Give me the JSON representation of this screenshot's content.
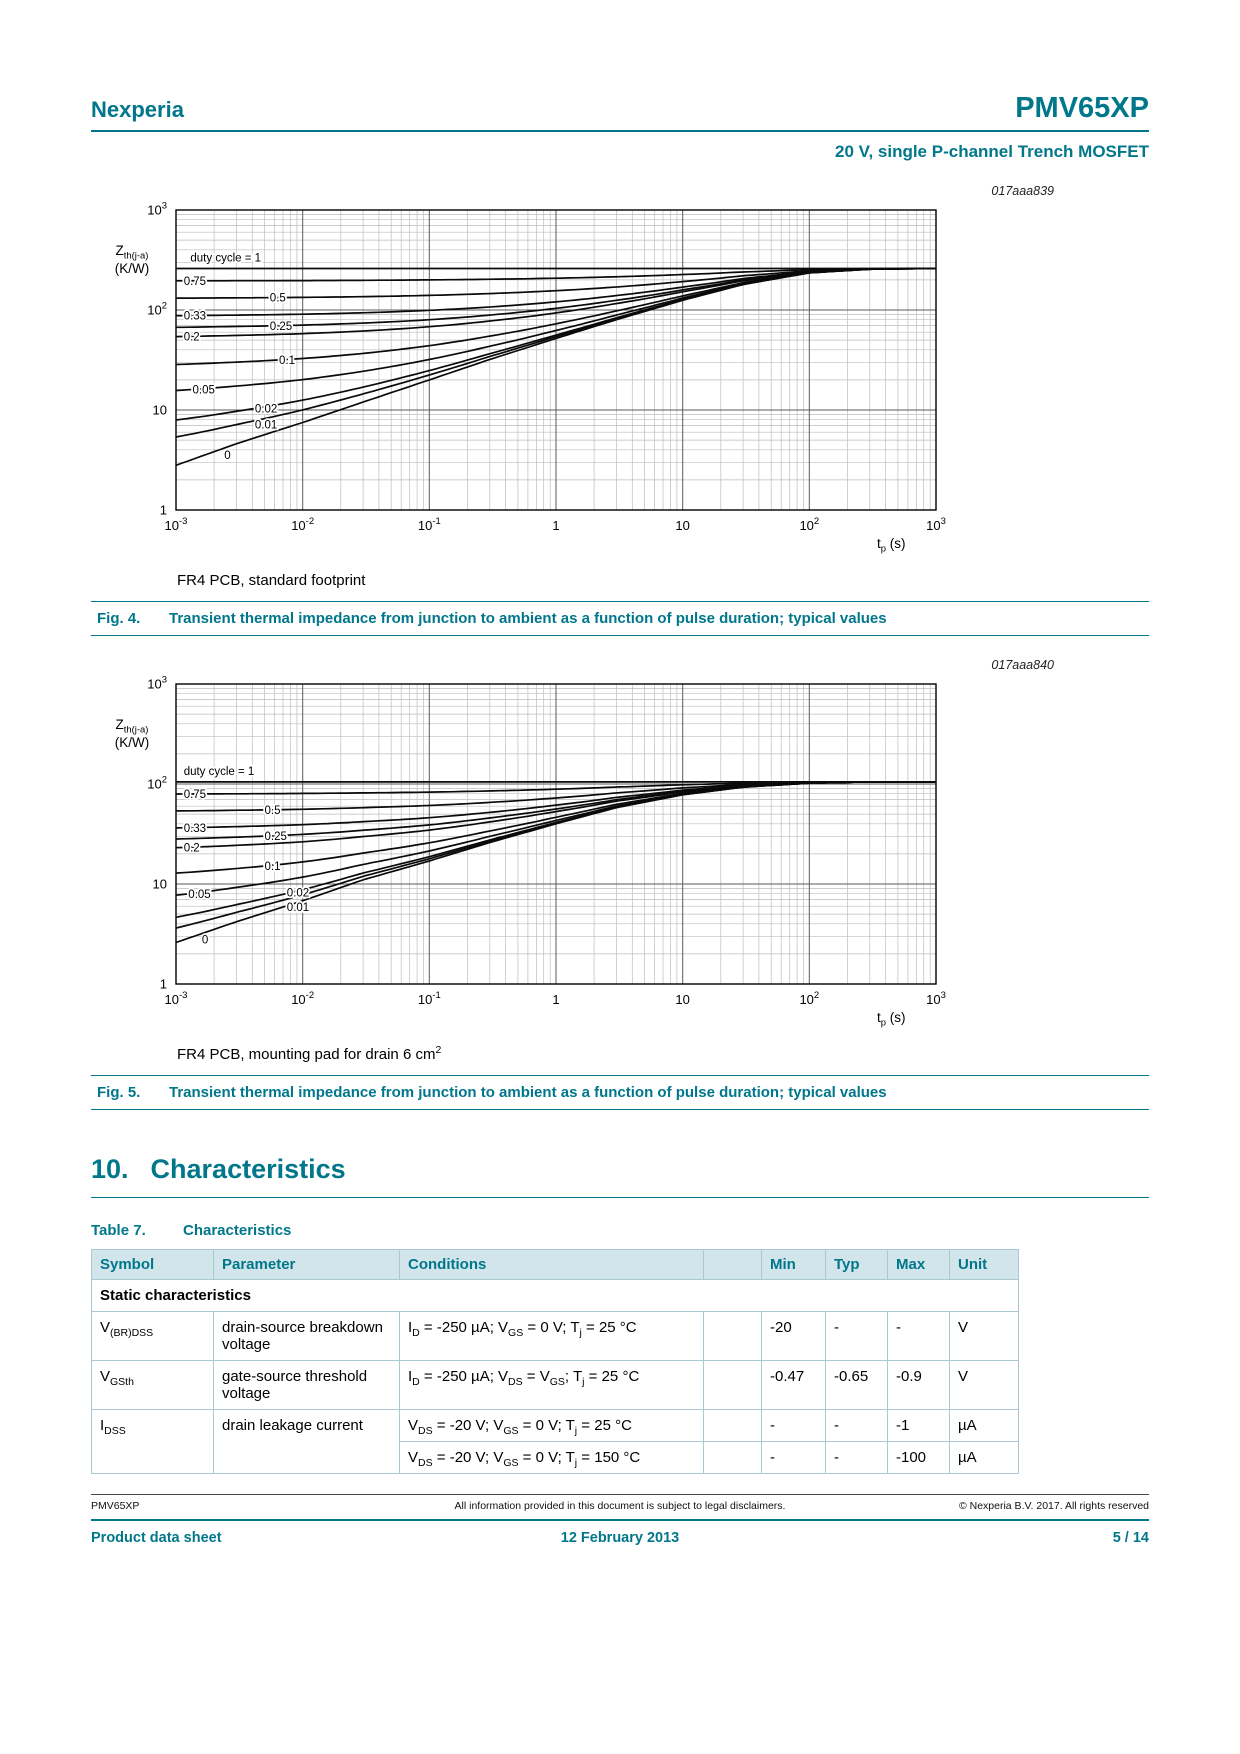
{
  "page": {
    "brand": "Nexperia",
    "part": "PMV65XP",
    "subtitle": "20 V, single P-channel Trench MOSFET",
    "accent_color": "#00778a"
  },
  "figures": [
    {
      "plot_id": "017aaa839",
      "ylabel_line1": [
        {
          "t": "Z"
        },
        {
          "s": "th(j-a)"
        }
      ],
      "ylabel_line2": "(K/W)",
      "xlabel": [
        {
          "t": "t"
        },
        {
          "s": "p"
        },
        {
          "t": " (s)"
        }
      ],
      "note": [
        {
          "t": "FR4 PCB, standard footprint"
        }
      ],
      "caption_label": "Fig. 4.",
      "caption": "Transient thermal impedance from junction to ambient as a function of pulse duration; typical values"
    },
    {
      "plot_id": "017aaa840",
      "ylabel_line1": [
        {
          "t": "Z"
        },
        {
          "s": "th(j-a)"
        }
      ],
      "ylabel_line2": "(K/W)",
      "xlabel": [
        {
          "t": "t"
        },
        {
          "s": "p"
        },
        {
          "t": " (s)"
        }
      ],
      "note": [
        {
          "t": "FR4 PCB, mounting pad for drain 6 cm"
        },
        {
          "p": "2"
        }
      ],
      "caption_label": "Fig. 5.",
      "caption": "Transient thermal impedance from junction to ambient as a function of pulse duration; typical values"
    }
  ],
  "chart_data": [
    {
      "type": "line",
      "plot_id": "017aaa839",
      "xlabel": "tp (s)",
      "ylabel": "Zth(j-a) (K/W)",
      "xscale": "log",
      "yscale": "log",
      "xlim": [
        0.001,
        1000
      ],
      "ylim": [
        1,
        1000
      ],
      "x_decades": [
        -3,
        -2,
        -1,
        0,
        1,
        2,
        3
      ],
      "y_decades": [
        0,
        1,
        2,
        3
      ],
      "grid": {
        "major": true,
        "minor": true
      },
      "rth_kw": 260,
      "duty_cycles": [
        1,
        0.75,
        0.5,
        0.33,
        0.25,
        0.2,
        0.1,
        0.05,
        0.02,
        0.01,
        0
      ],
      "model": "Zth(d,t) = d*Rth + (1-d)*Zth_single_shot(t)",
      "single_shot": {
        "t": [
          0.001,
          0.003,
          0.01,
          0.03,
          0.1,
          0.3,
          1,
          3,
          10,
          30,
          100,
          300,
          1000
        ],
        "zth": [
          2.8,
          4.6,
          7.5,
          12,
          20,
          32,
          52,
          80,
          125,
          180,
          235,
          256,
          260
        ]
      },
      "labels": [
        {
          "text": "duty cycle = 1",
          "d": 1,
          "t": 0.0013,
          "dy": -7
        },
        {
          "text": "0.75",
          "d": 0.75,
          "t": 0.00115,
          "dy": 4
        },
        {
          "text": "0.5",
          "d": 0.5,
          "t": 0.0055,
          "dy": 4
        },
        {
          "text": "0.33",
          "d": 0.33,
          "t": 0.00115,
          "dy": 4
        },
        {
          "text": "0.25",
          "d": 0.25,
          "t": 0.0055,
          "dy": 4
        },
        {
          "text": "0.2",
          "d": 0.2,
          "t": 0.00115,
          "dy": 4
        },
        {
          "text": "0.1",
          "d": 0.1,
          "t": 0.0065,
          "dy": 4
        },
        {
          "text": "0.05",
          "d": 0.05,
          "t": 0.00135,
          "dy": 4
        },
        {
          "text": "0.02",
          "d": 0.02,
          "t": 0.0042,
          "dy": 4
        },
        {
          "text": "0.01",
          "d": 0.01,
          "t": 0.0042,
          "dy": 8
        },
        {
          "text": "0",
          "d": 0,
          "t": 0.0024,
          "dy": 11
        }
      ]
    },
    {
      "type": "line",
      "plot_id": "017aaa840",
      "xlabel": "tp (s)",
      "ylabel": "Zth(j-a) (K/W)",
      "xscale": "log",
      "yscale": "log",
      "xlim": [
        0.001,
        1000
      ],
      "ylim": [
        1,
        1000
      ],
      "x_decades": [
        -3,
        -2,
        -1,
        0,
        1,
        2,
        3
      ],
      "y_decades": [
        0,
        1,
        2,
        3
      ],
      "grid": {
        "major": true,
        "minor": true
      },
      "rth_kw": 105,
      "duty_cycles": [
        1,
        0.75,
        0.5,
        0.33,
        0.25,
        0.2,
        0.1,
        0.05,
        0.02,
        0.01,
        0
      ],
      "model": "Zth(d,t) = d*Rth + (1-d)*Zth_single_shot(t)",
      "single_shot": {
        "t": [
          0.001,
          0.003,
          0.01,
          0.03,
          0.1,
          0.3,
          1,
          3,
          10,
          30,
          100,
          300,
          1000
        ],
        "zth": [
          2.6,
          4.2,
          6.8,
          11,
          17,
          26,
          40,
          58,
          78,
          93,
          102,
          105,
          105
        ]
      },
      "labels": [
        {
          "text": "duty cycle = 1",
          "d": 1,
          "t": 0.00115,
          "dy": -7
        },
        {
          "text": "0.75",
          "d": 0.75,
          "t": 0.00115,
          "dy": 4
        },
        {
          "text": "0.5",
          "d": 0.5,
          "t": 0.005,
          "dy": 4
        },
        {
          "text": "0.33",
          "d": 0.33,
          "t": 0.00115,
          "dy": 4
        },
        {
          "text": "0.25",
          "d": 0.25,
          "t": 0.005,
          "dy": 4
        },
        {
          "text": "0.2",
          "d": 0.2,
          "t": 0.00115,
          "dy": 4
        },
        {
          "text": "0.1",
          "d": 0.1,
          "t": 0.005,
          "dy": 4
        },
        {
          "text": "0.05",
          "d": 0.05,
          "t": 0.00125,
          "dy": 4
        },
        {
          "text": "0",
          "d": 0,
          "t": 0.0016,
          "dy": 10
        },
        {
          "text": "0.02",
          "d": 0.02,
          "t": 0.0075,
          "dy": 3
        },
        {
          "text": "0.01",
          "d": 0.01,
          "t": 0.0075,
          "dy": 12
        }
      ]
    }
  ],
  "section": {
    "number": "10.",
    "title": "Characteristics"
  },
  "table": {
    "caption_label": "Table 7.",
    "caption_title": "Characteristics",
    "headers": [
      "Symbol",
      "Parameter",
      "Conditions",
      "",
      "Min",
      "Typ",
      "Max",
      "Unit"
    ],
    "group": "Static characteristics",
    "rows": [
      {
        "symbol": [
          {
            "t": "V"
          },
          {
            "s": "(BR)DSS"
          }
        ],
        "parameter": "drain-source breakdown voltage",
        "conditions": [
          [
            {
              "t": "I"
            },
            {
              "s": "D"
            },
            {
              "t": " = -250 µA; V"
            },
            {
              "s": "GS"
            },
            {
              "t": " = 0 V; T"
            },
            {
              "s": "j"
            },
            {
              "t": " = 25 °C"
            }
          ]
        ],
        "values": [
          [
            "-20",
            "-",
            "-",
            "V"
          ]
        ]
      },
      {
        "symbol": [
          {
            "t": "V"
          },
          {
            "s": "GSth"
          }
        ],
        "parameter": "gate-source threshold voltage",
        "conditions": [
          [
            {
              "t": "I"
            },
            {
              "s": "D"
            },
            {
              "t": " = -250 µA; V"
            },
            {
              "s": "DS"
            },
            {
              "t": " = V"
            },
            {
              "s": "GS"
            },
            {
              "t": "; T"
            },
            {
              "s": "j"
            },
            {
              "t": " = 25 °C"
            }
          ]
        ],
        "values": [
          [
            "-0.47",
            "-0.65",
            "-0.9",
            "V"
          ]
        ]
      },
      {
        "symbol": [
          {
            "t": "I"
          },
          {
            "s": "DSS"
          }
        ],
        "parameter": "drain leakage current",
        "conditions": [
          [
            {
              "t": "V"
            },
            {
              "s": "DS"
            },
            {
              "t": " = -20 V; V"
            },
            {
              "s": "GS"
            },
            {
              "t": " = 0 V; T"
            },
            {
              "s": "j"
            },
            {
              "t": " = 25 °C"
            }
          ],
          [
            {
              "t": "V"
            },
            {
              "s": "DS"
            },
            {
              "t": " = -20 V; V"
            },
            {
              "s": "GS"
            },
            {
              "t": " = 0 V; T"
            },
            {
              "s": "j"
            },
            {
              "t": " = 150 °C"
            }
          ]
        ],
        "values": [
          [
            "-",
            "-",
            "-1",
            "µA"
          ],
          [
            "-",
            "-",
            "-100",
            "µA"
          ]
        ]
      }
    ]
  },
  "footer": {
    "part": "PMV65XP",
    "disclaimer": "All information provided in this document is subject to legal disclaimers.",
    "copyright": "© Nexperia B.V. 2017. All rights reserved",
    "doc_type": "Product data sheet",
    "date": "12 February 2013",
    "page_num": "5 / 14"
  }
}
